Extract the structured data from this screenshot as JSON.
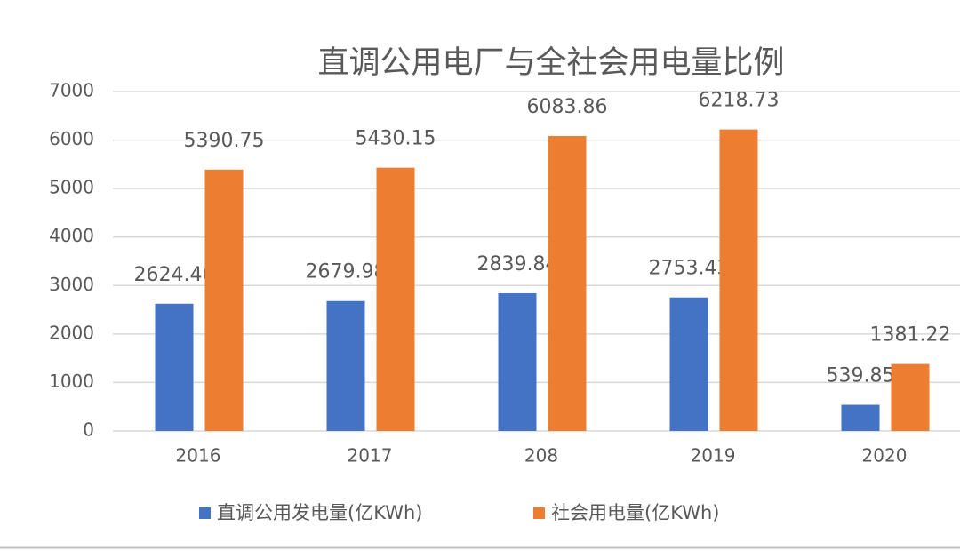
{
  "chart_data": {
    "type": "bar",
    "title": "直调公用电厂与全社会用电量比例",
    "categories": [
      "2016",
      "2017",
      "208",
      "2019",
      "2020"
    ],
    "series": [
      {
        "name": "直调公用发电量(亿KWh)",
        "color": "#4472c4",
        "values": [
          2624.46,
          2679.98,
          2839.84,
          2753.43,
          539.85
        ]
      },
      {
        "name": "社会用电量(亿KWh)",
        "color": "#ed7d31",
        "values": [
          5390.75,
          5430.15,
          6083.86,
          6218.73,
          1381.22
        ]
      }
    ],
    "ylim": [
      0,
      7000
    ],
    "yticks": [
      0,
      1000,
      2000,
      3000,
      4000,
      5000,
      6000,
      7000
    ],
    "grid": true
  }
}
